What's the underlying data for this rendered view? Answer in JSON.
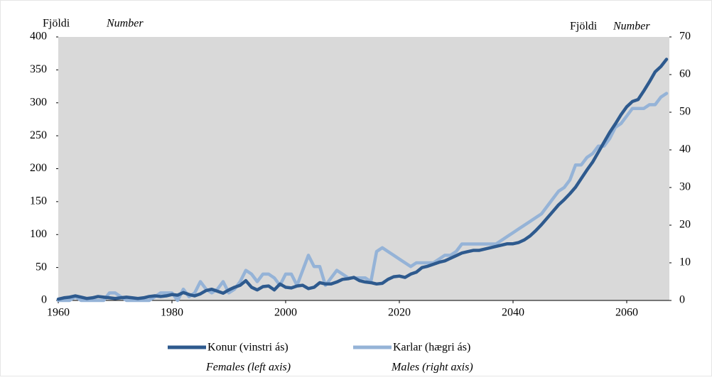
{
  "chart_data": {
    "type": "line",
    "y_label": "Fjöldi",
    "y_label_en": "Number",
    "y2_label": "Fjöldi",
    "y2_label_en": "Number",
    "x": [
      1960,
      1961,
      1962,
      1963,
      1964,
      1965,
      1966,
      1967,
      1968,
      1969,
      1970,
      1971,
      1972,
      1973,
      1974,
      1975,
      1976,
      1977,
      1978,
      1979,
      1980,
      1981,
      1982,
      1983,
      1984,
      1985,
      1986,
      1987,
      1988,
      1989,
      1990,
      1991,
      1992,
      1993,
      1994,
      1995,
      1996,
      1997,
      1998,
      1999,
      2000,
      2001,
      2002,
      2003,
      2004,
      2005,
      2006,
      2007,
      2008,
      2009,
      2010,
      2011,
      2012,
      2013,
      2014,
      2015,
      2016,
      2017,
      2018,
      2019,
      2020,
      2021,
      2022,
      2023,
      2024,
      2025,
      2026,
      2027,
      2028,
      2029,
      2030,
      2031,
      2032,
      2033,
      2034,
      2035,
      2036,
      2037,
      2038,
      2039,
      2040,
      2041,
      2042,
      2043,
      2044,
      2045,
      2046,
      2047,
      2048,
      2049,
      2050,
      2051,
      2052,
      2053,
      2054,
      2055,
      2056,
      2057,
      2058,
      2059,
      2060,
      2061,
      2062,
      2063,
      2064,
      2065,
      2066,
      2067
    ],
    "xlim": [
      1960,
      2067.5
    ],
    "xticks": [
      1960,
      1980,
      2000,
      2020,
      2040,
      2060
    ],
    "ylim": [
      0,
      400
    ],
    "yticks": [
      0,
      50,
      100,
      150,
      200,
      250,
      300,
      350,
      400
    ],
    "y2lim": [
      0,
      70
    ],
    "y2ticks": [
      0,
      10,
      20,
      30,
      40,
      50,
      60,
      70
    ],
    "series": [
      {
        "name": "Konur (vinstri ás)",
        "name_en": "Females (left axis)",
        "color": "#2e5a8e",
        "axis": "y",
        "values": [
          2,
          4,
          5,
          7,
          5,
          3,
          4,
          6,
          5,
          4,
          3,
          4,
          5,
          4,
          3,
          4,
          6,
          7,
          6,
          7,
          9,
          8,
          12,
          9,
          7,
          10,
          15,
          17,
          14,
          11,
          16,
          20,
          23,
          30,
          20,
          16,
          21,
          22,
          16,
          25,
          20,
          19,
          22,
          23,
          18,
          20,
          27,
          25,
          25,
          28,
          32,
          33,
          35,
          30,
          28,
          27,
          25,
          26,
          32,
          36,
          37,
          35,
          40,
          43,
          50,
          52,
          55,
          58,
          60,
          64,
          68,
          72,
          74,
          76,
          76,
          78,
          80,
          82,
          84,
          86,
          86,
          88,
          92,
          98,
          106,
          115,
          125,
          135,
          145,
          153,
          162,
          172,
          185,
          198,
          210,
          225,
          240,
          255,
          268,
          282,
          294,
          302,
          305,
          318,
          332,
          347,
          355,
          366
        ]
      },
      {
        "name": "Karlar (hægri ás)",
        "name_en": "Males (right axis)",
        "color": "#95b3d7",
        "axis": "y2",
        "values": [
          0,
          0,
          0,
          1,
          0,
          0,
          0,
          0,
          0,
          2,
          2,
          1,
          0,
          0,
          0,
          0,
          0,
          1,
          2,
          2,
          2,
          0,
          3,
          1,
          2,
          5,
          3,
          2,
          3,
          5,
          2,
          3,
          5,
          8,
          7,
          5,
          7,
          7,
          6,
          4,
          7,
          7,
          4,
          8,
          12,
          9,
          9,
          4,
          6,
          8,
          7,
          6,
          6,
          6,
          6,
          5,
          13,
          14,
          13,
          12,
          11,
          10,
          9,
          10,
          10,
          10,
          10,
          11,
          12,
          12,
          13,
          15,
          15,
          15,
          15,
          15,
          15,
          15,
          16,
          17,
          18,
          19,
          20,
          21,
          22,
          23,
          25,
          27,
          29,
          30,
          32,
          36,
          36,
          38,
          39,
          41,
          41,
          43,
          46,
          47,
          49,
          51,
          51,
          51,
          52,
          52,
          54,
          55
        ]
      }
    ]
  }
}
